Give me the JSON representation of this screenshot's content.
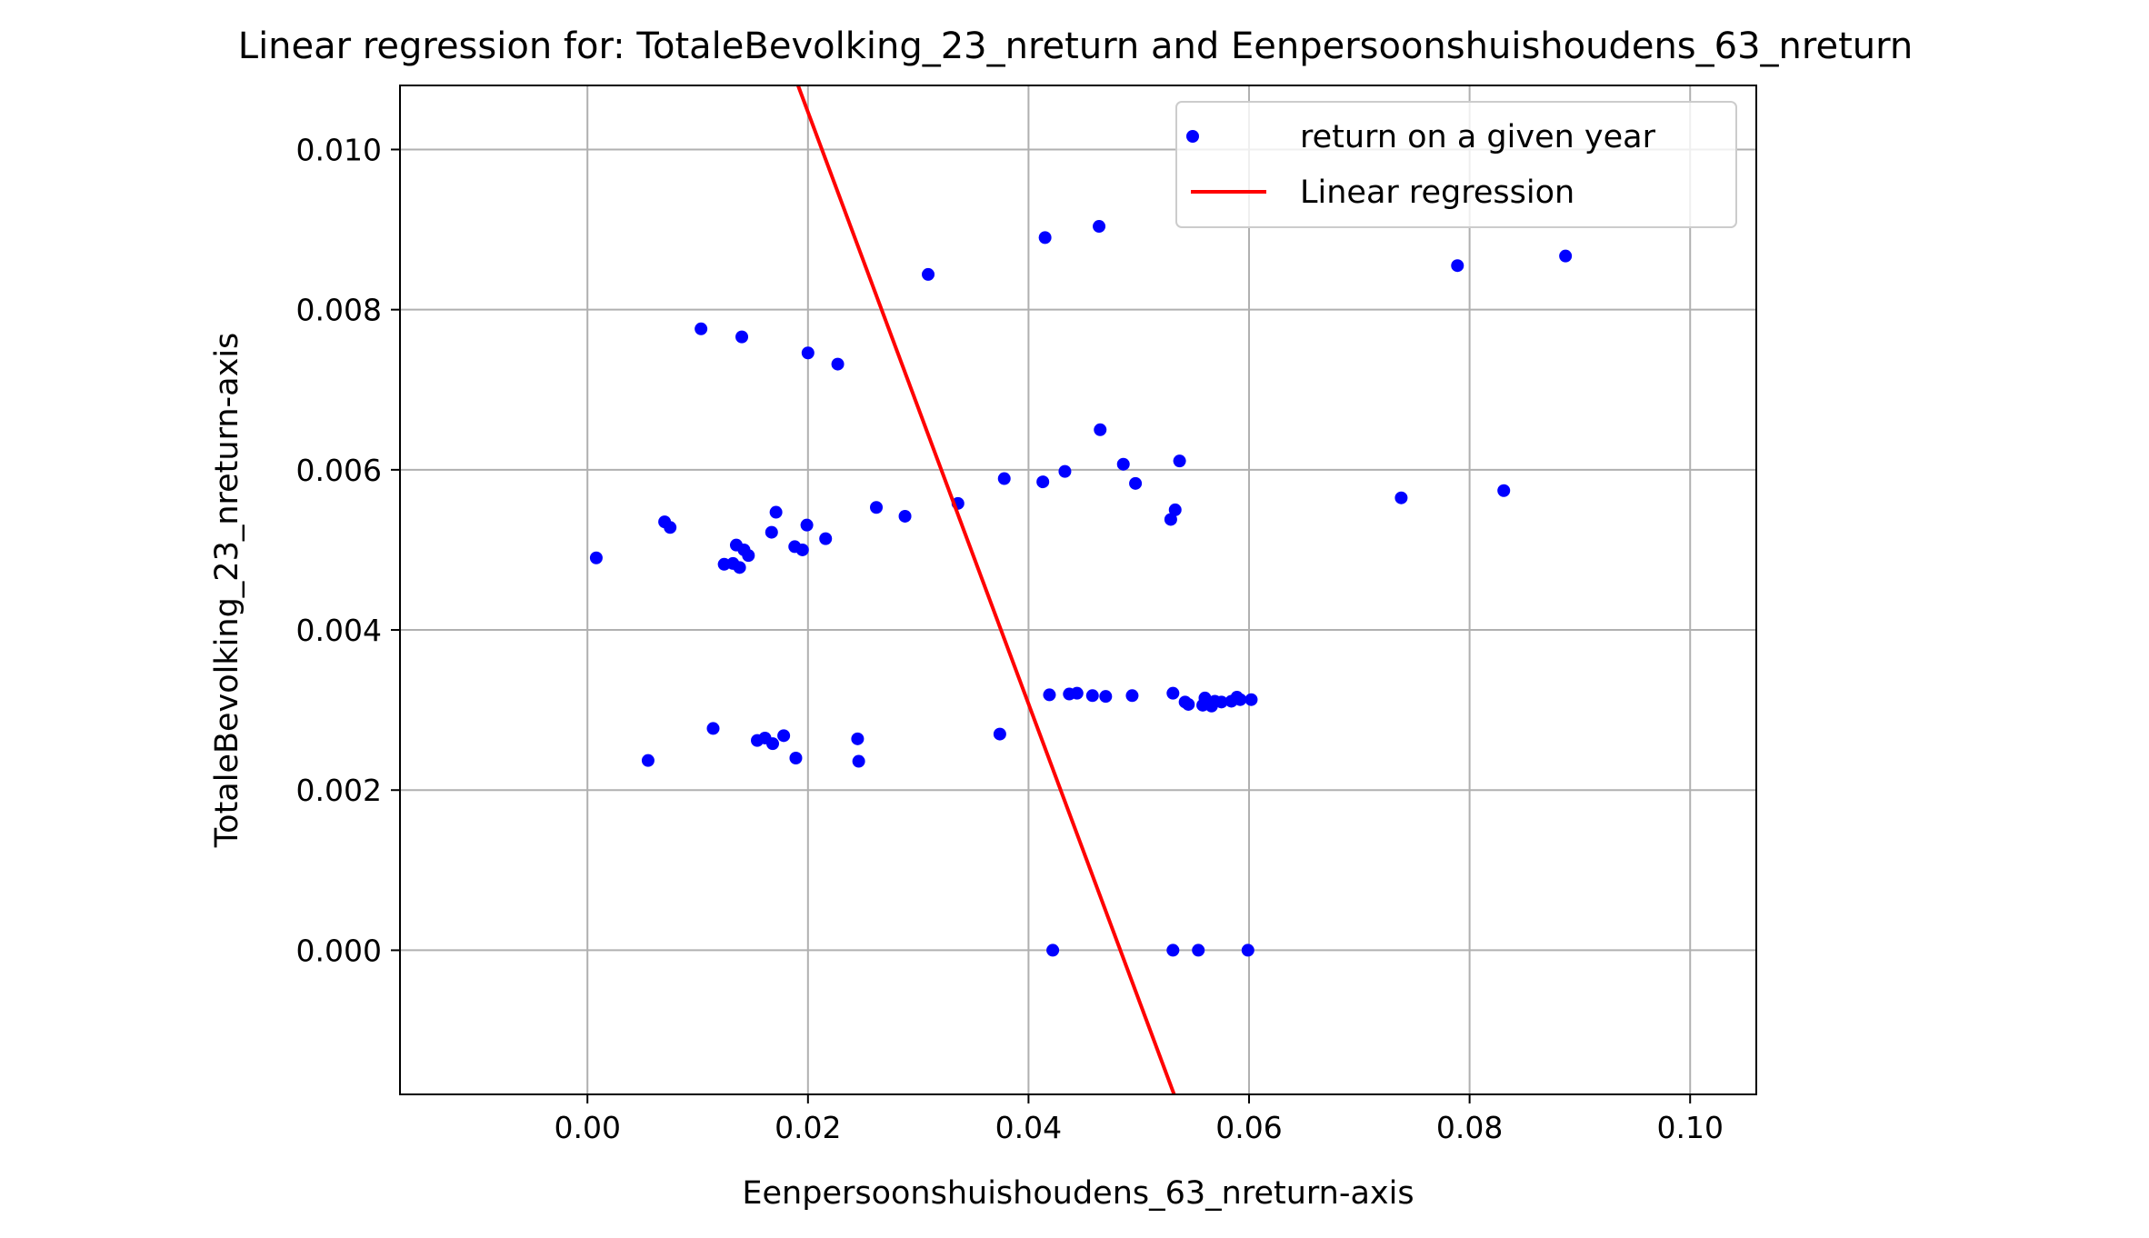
{
  "chart_data": {
    "type": "scatter",
    "title": "Linear regression for: TotaleBevolking_23_nreturn and Eenpersoonshuishoudens_63_nreturn",
    "xlabel": "Eenpersoonshuishoudens_63_nreturn-axis",
    "ylabel": "TotaleBevolking_23_nreturn-axis",
    "xlim": [
      -0.017,
      0.106
    ],
    "ylim": [
      -0.0018,
      0.0108
    ],
    "x_ticks": [
      0.0,
      0.02,
      0.04,
      0.06,
      0.08,
      0.1
    ],
    "x_tick_labels": [
      "0.00",
      "0.02",
      "0.04",
      "0.06",
      "0.08",
      "0.10"
    ],
    "y_ticks": [
      0.0,
      0.002,
      0.004,
      0.006,
      0.008,
      0.01
    ],
    "y_tick_labels": [
      "0.000",
      "0.002",
      "0.004",
      "0.006",
      "0.008",
      "0.010"
    ],
    "grid": true,
    "legend_position": "top-right",
    "series": [
      {
        "name": "return on a given year",
        "kind": "scatter",
        "color": "#0000ff",
        "points": [
          [
            0.0008,
            0.0049
          ],
          [
            0.0055,
            0.00237
          ],
          [
            0.007,
            0.00535
          ],
          [
            0.0075,
            0.00528
          ],
          [
            0.0103,
            0.00776
          ],
          [
            0.0114,
            0.00277
          ],
          [
            0.0124,
            0.00482
          ],
          [
            0.0132,
            0.00483
          ],
          [
            0.0135,
            0.00506
          ],
          [
            0.0138,
            0.00478
          ],
          [
            0.014,
            0.00766
          ],
          [
            0.0142,
            0.005
          ],
          [
            0.0146,
            0.00493
          ],
          [
            0.0154,
            0.00262
          ],
          [
            0.0161,
            0.00265
          ],
          [
            0.0167,
            0.00522
          ],
          [
            0.0168,
            0.00258
          ],
          [
            0.0171,
            0.00547
          ],
          [
            0.0178,
            0.00268
          ],
          [
            0.0188,
            0.00504
          ],
          [
            0.0189,
            0.0024
          ],
          [
            0.0195,
            0.005
          ],
          [
            0.0199,
            0.00531
          ],
          [
            0.02,
            0.00746
          ],
          [
            0.0216,
            0.00514
          ],
          [
            0.0227,
            0.00732
          ],
          [
            0.0245,
            0.00264
          ],
          [
            0.0246,
            0.00236
          ],
          [
            0.0262,
            0.00553
          ],
          [
            0.0288,
            0.00542
          ],
          [
            0.0309,
            0.00844
          ],
          [
            0.0336,
            0.00558
          ],
          [
            0.0374,
            0.0027
          ],
          [
            0.0378,
            0.00589
          ],
          [
            0.0413,
            0.00585
          ],
          [
            0.0415,
            0.0089
          ],
          [
            0.0419,
            0.00319
          ],
          [
            0.0422,
            0.0
          ],
          [
            0.0433,
            0.00598
          ],
          [
            0.0437,
            0.0032
          ],
          [
            0.0444,
            0.00321
          ],
          [
            0.0458,
            0.00318
          ],
          [
            0.0464,
            0.00904
          ],
          [
            0.0465,
            0.0065
          ],
          [
            0.047,
            0.00317
          ],
          [
            0.0486,
            0.00607
          ],
          [
            0.0494,
            0.00318
          ],
          [
            0.0497,
            0.00583
          ],
          [
            0.0529,
            0.00538
          ],
          [
            0.0531,
            0.00321
          ],
          [
            0.0531,
            0.0
          ],
          [
            0.0533,
            0.0055
          ],
          [
            0.0537,
            0.00611
          ],
          [
            0.0542,
            0.0031
          ],
          [
            0.0545,
            0.00307
          ],
          [
            0.0554,
            0.0
          ],
          [
            0.0558,
            0.00306
          ],
          [
            0.056,
            0.00315
          ],
          [
            0.0566,
            0.00305
          ],
          [
            0.0569,
            0.00311
          ],
          [
            0.0575,
            0.0031
          ],
          [
            0.0584,
            0.00311
          ],
          [
            0.0589,
            0.00316
          ],
          [
            0.0592,
            0.00313
          ],
          [
            0.0599,
            0.0
          ],
          [
            0.0602,
            0.00313
          ],
          [
            0.0738,
            0.00565
          ],
          [
            0.0789,
            0.00855
          ],
          [
            0.0831,
            0.00574
          ],
          [
            0.0887,
            0.00867
          ]
        ]
      },
      {
        "name": "Linear regression",
        "kind": "line",
        "color": "#ff0000",
        "points": [
          [
            0.0191,
            0.0108
          ],
          [
            0.0532,
            -0.0018
          ]
        ]
      }
    ]
  }
}
